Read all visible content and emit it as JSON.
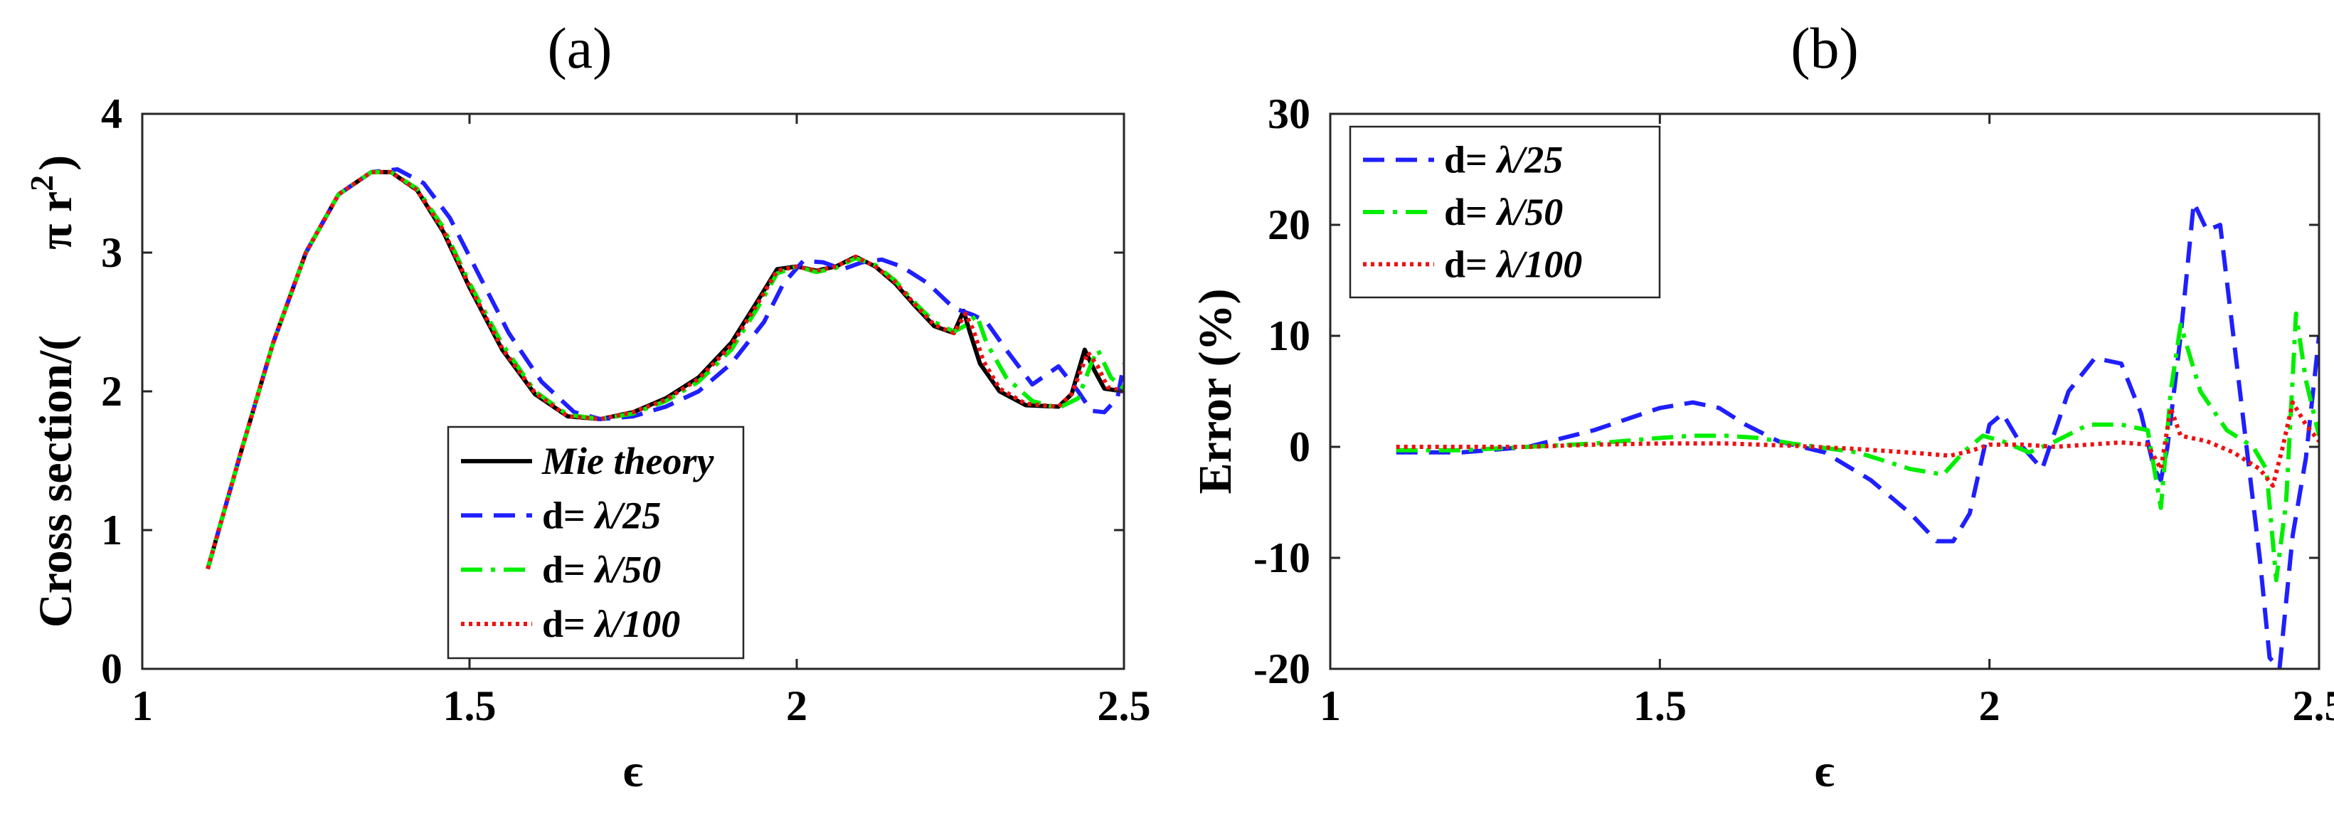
{
  "chart_data": [
    {
      "id": "a",
      "type": "line",
      "title": "(a)",
      "xlabel": "ϵ",
      "ylabel": "Cross section/(π r²)",
      "ylabel_parts": {
        "main": "Cross section/(",
        "pi": "π r",
        "exp": "2",
        "close": ")"
      },
      "xlim": [
        1,
        2.5
      ],
      "ylim": [
        0,
        4
      ],
      "xticks": [
        1,
        1.5,
        2,
        2.5
      ],
      "xtick_labels": [
        "1",
        "1.5",
        "2",
        "2.5"
      ],
      "yticks": [
        0,
        1,
        2,
        3,
        4
      ],
      "ytick_labels": [
        "0",
        "1",
        "2",
        "3",
        "4"
      ],
      "legend_position": "bottom-center",
      "series": [
        {
          "name": "Mie theory",
          "legend_prefix": "",
          "legend_label": "Mie theory",
          "color": "#000000",
          "style": "solid",
          "x": [
            1.1,
            1.15,
            1.2,
            1.25,
            1.3,
            1.35,
            1.38,
            1.42,
            1.46,
            1.5,
            1.55,
            1.6,
            1.65,
            1.7,
            1.75,
            1.8,
            1.85,
            1.9,
            1.94,
            1.97,
            2.0,
            2.03,
            2.06,
            2.09,
            2.12,
            2.15,
            2.18,
            2.21,
            2.24,
            2.255,
            2.265,
            2.28,
            2.31,
            2.35,
            2.4,
            2.42,
            2.44,
            2.455,
            2.47,
            2.5
          ],
          "y": [
            0.72,
            1.55,
            2.35,
            3.0,
            3.42,
            3.58,
            3.58,
            3.45,
            3.15,
            2.75,
            2.3,
            1.98,
            1.82,
            1.8,
            1.85,
            1.95,
            2.1,
            2.35,
            2.65,
            2.88,
            2.9,
            2.87,
            2.9,
            2.97,
            2.9,
            2.78,
            2.62,
            2.47,
            2.42,
            2.58,
            2.42,
            2.2,
            2.0,
            1.9,
            1.89,
            1.98,
            2.3,
            2.15,
            2.02,
            2.0
          ]
        },
        {
          "name": "d= λ/25",
          "legend_prefix": "d=  ",
          "legend_label": "λ/25",
          "color": "#1f1fff",
          "style": "dashed",
          "x": [
            1.1,
            1.15,
            1.2,
            1.25,
            1.3,
            1.35,
            1.39,
            1.43,
            1.47,
            1.51,
            1.56,
            1.61,
            1.66,
            1.7,
            1.75,
            1.8,
            1.85,
            1.9,
            1.95,
            1.98,
            2.01,
            2.04,
            2.07,
            2.1,
            2.13,
            2.16,
            2.2,
            2.24,
            2.27,
            2.29,
            2.32,
            2.36,
            2.4,
            2.43,
            2.45,
            2.47,
            2.49,
            2.5
          ],
          "y": [
            0.72,
            1.55,
            2.35,
            3.0,
            3.42,
            3.58,
            3.6,
            3.5,
            3.25,
            2.88,
            2.42,
            2.07,
            1.85,
            1.8,
            1.82,
            1.89,
            2.0,
            2.2,
            2.5,
            2.78,
            2.94,
            2.93,
            2.88,
            2.93,
            2.95,
            2.9,
            2.78,
            2.6,
            2.55,
            2.5,
            2.3,
            2.05,
            2.18,
            2.0,
            1.86,
            1.85,
            1.95,
            2.2
          ]
        },
        {
          "name": "d= λ/50",
          "legend_prefix": "d=  ",
          "legend_label": "λ/50",
          "color": "#00ee00",
          "style": "dashdot",
          "x": [
            1.1,
            1.15,
            1.2,
            1.25,
            1.3,
            1.35,
            1.38,
            1.42,
            1.46,
            1.5,
            1.55,
            1.6,
            1.65,
            1.7,
            1.75,
            1.8,
            1.85,
            1.9,
            1.94,
            1.97,
            2.0,
            2.03,
            2.06,
            2.09,
            2.12,
            2.15,
            2.18,
            2.21,
            2.24,
            2.26,
            2.275,
            2.29,
            2.32,
            2.36,
            2.4,
            2.43,
            2.45,
            2.46,
            2.48,
            2.5
          ],
          "y": [
            0.72,
            1.55,
            2.35,
            3.0,
            3.42,
            3.58,
            3.58,
            3.46,
            3.18,
            2.78,
            2.34,
            2.0,
            1.83,
            1.8,
            1.84,
            1.93,
            2.07,
            2.3,
            2.6,
            2.85,
            2.9,
            2.86,
            2.89,
            2.96,
            2.91,
            2.8,
            2.64,
            2.5,
            2.43,
            2.48,
            2.55,
            2.35,
            2.1,
            1.93,
            1.88,
            1.95,
            2.2,
            2.3,
            2.1,
            2.02
          ]
        },
        {
          "name": "d= λ/100",
          "legend_prefix": "d=  ",
          "legend_label": "λ/100",
          "color": "#ee1111",
          "style": "dotted",
          "x": [
            1.1,
            1.15,
            1.2,
            1.25,
            1.3,
            1.35,
            1.38,
            1.42,
            1.46,
            1.5,
            1.55,
            1.6,
            1.65,
            1.7,
            1.75,
            1.8,
            1.85,
            1.9,
            1.94,
            1.97,
            2.0,
            2.03,
            2.06,
            2.09,
            2.12,
            2.15,
            2.18,
            2.21,
            2.24,
            2.258,
            2.27,
            2.285,
            2.31,
            2.35,
            2.4,
            2.42,
            2.445,
            2.46,
            2.475,
            2.5
          ],
          "y": [
            0.72,
            1.55,
            2.35,
            3.0,
            3.42,
            3.58,
            3.58,
            3.45,
            3.16,
            2.76,
            2.31,
            1.99,
            1.82,
            1.8,
            1.85,
            1.94,
            2.09,
            2.33,
            2.63,
            2.87,
            2.9,
            2.87,
            2.9,
            2.97,
            2.9,
            2.79,
            2.63,
            2.48,
            2.42,
            2.56,
            2.44,
            2.22,
            2.02,
            1.91,
            1.89,
            1.98,
            2.28,
            2.18,
            2.03,
            2.0
          ]
        }
      ]
    },
    {
      "id": "b",
      "type": "line",
      "title": "(b)",
      "xlabel": "ϵ",
      "ylabel": "Error (%)",
      "xlim": [
        1,
        2.5
      ],
      "ylim": [
        -20,
        30
      ],
      "xticks": [
        1,
        1.5,
        2,
        2.5
      ],
      "xtick_labels": [
        "1",
        "1.5",
        "2",
        "2.5"
      ],
      "yticks": [
        -20,
        -10,
        0,
        10,
        20,
        30
      ],
      "ytick_labels": [
        "-20",
        "-10",
        "0",
        "10",
        "20",
        "30"
      ],
      "legend_position": "top-left",
      "series": [
        {
          "name": "d= λ/25",
          "legend_prefix": "d=  ",
          "legend_label": "λ/25",
          "color": "#1f1fff",
          "style": "dashed",
          "x": [
            1.1,
            1.2,
            1.3,
            1.4,
            1.5,
            1.55,
            1.59,
            1.63,
            1.68,
            1.75,
            1.82,
            1.88,
            1.92,
            1.945,
            1.97,
            2.0,
            2.02,
            2.05,
            2.08,
            2.12,
            2.16,
            2.2,
            2.23,
            2.25,
            2.26,
            2.27,
            2.29,
            2.31,
            2.33,
            2.35,
            2.38,
            2.41,
            2.425,
            2.44,
            2.46,
            2.48,
            2.5
          ],
          "y": [
            -0.5,
            -0.5,
            0,
            1.5,
            3.5,
            4,
            3.5,
            2,
            0.5,
            -0.5,
            -3,
            -6,
            -8.5,
            -8.5,
            -6,
            2,
            3,
            0,
            -2,
            5,
            8,
            7.5,
            3,
            -2,
            -3,
            0,
            10,
            22,
            19.5,
            20,
            5,
            -10,
            -19,
            -20,
            -8,
            -1,
            10
          ]
        },
        {
          "name": "d= λ/50",
          "legend_prefix": "d=  ",
          "legend_label": "λ/50",
          "color": "#00ee00",
          "style": "dashdot",
          "x": [
            1.1,
            1.2,
            1.3,
            1.4,
            1.5,
            1.55,
            1.6,
            1.65,
            1.7,
            1.8,
            1.88,
            1.93,
            1.96,
            1.99,
            2.02,
            2.06,
            2.1,
            2.15,
            2.2,
            2.24,
            2.26,
            2.275,
            2.29,
            2.32,
            2.36,
            2.4,
            2.42,
            2.435,
            2.45,
            2.465,
            2.48,
            2.5
          ],
          "y": [
            -0.3,
            -0.3,
            0,
            0.3,
            0.8,
            1,
            1,
            0.8,
            0.3,
            -0.5,
            -2,
            -2.5,
            -0.5,
            1,
            0.5,
            -0.5,
            0.5,
            2,
            2,
            1.5,
            -5.5,
            5,
            11,
            5,
            1.5,
            0,
            -2,
            -12,
            -5,
            12,
            6,
            1
          ]
        },
        {
          "name": "d= λ/100",
          "legend_prefix": "d=  ",
          "legend_label": "λ/100",
          "color": "#ee1111",
          "style": "dotted",
          "x": [
            1.1,
            1.2,
            1.3,
            1.4,
            1.5,
            1.6,
            1.7,
            1.8,
            1.85,
            1.9,
            1.94,
            1.97,
            2.0,
            2.05,
            2.1,
            2.15,
            2.2,
            2.24,
            2.26,
            2.275,
            2.29,
            2.33,
            2.37,
            2.41,
            2.43,
            2.445,
            2.46,
            2.48,
            2.5
          ],
          "y": [
            0,
            0,
            0,
            0.2,
            0.3,
            0.3,
            0.1,
            -0.2,
            -0.4,
            -0.6,
            -0.8,
            -0.4,
            0.2,
            0.2,
            0,
            0.2,
            0.4,
            0.2,
            -2,
            3.5,
            1,
            0.5,
            -0.5,
            -2,
            -3.5,
            0,
            4,
            2,
            0.5
          ]
        }
      ]
    }
  ]
}
